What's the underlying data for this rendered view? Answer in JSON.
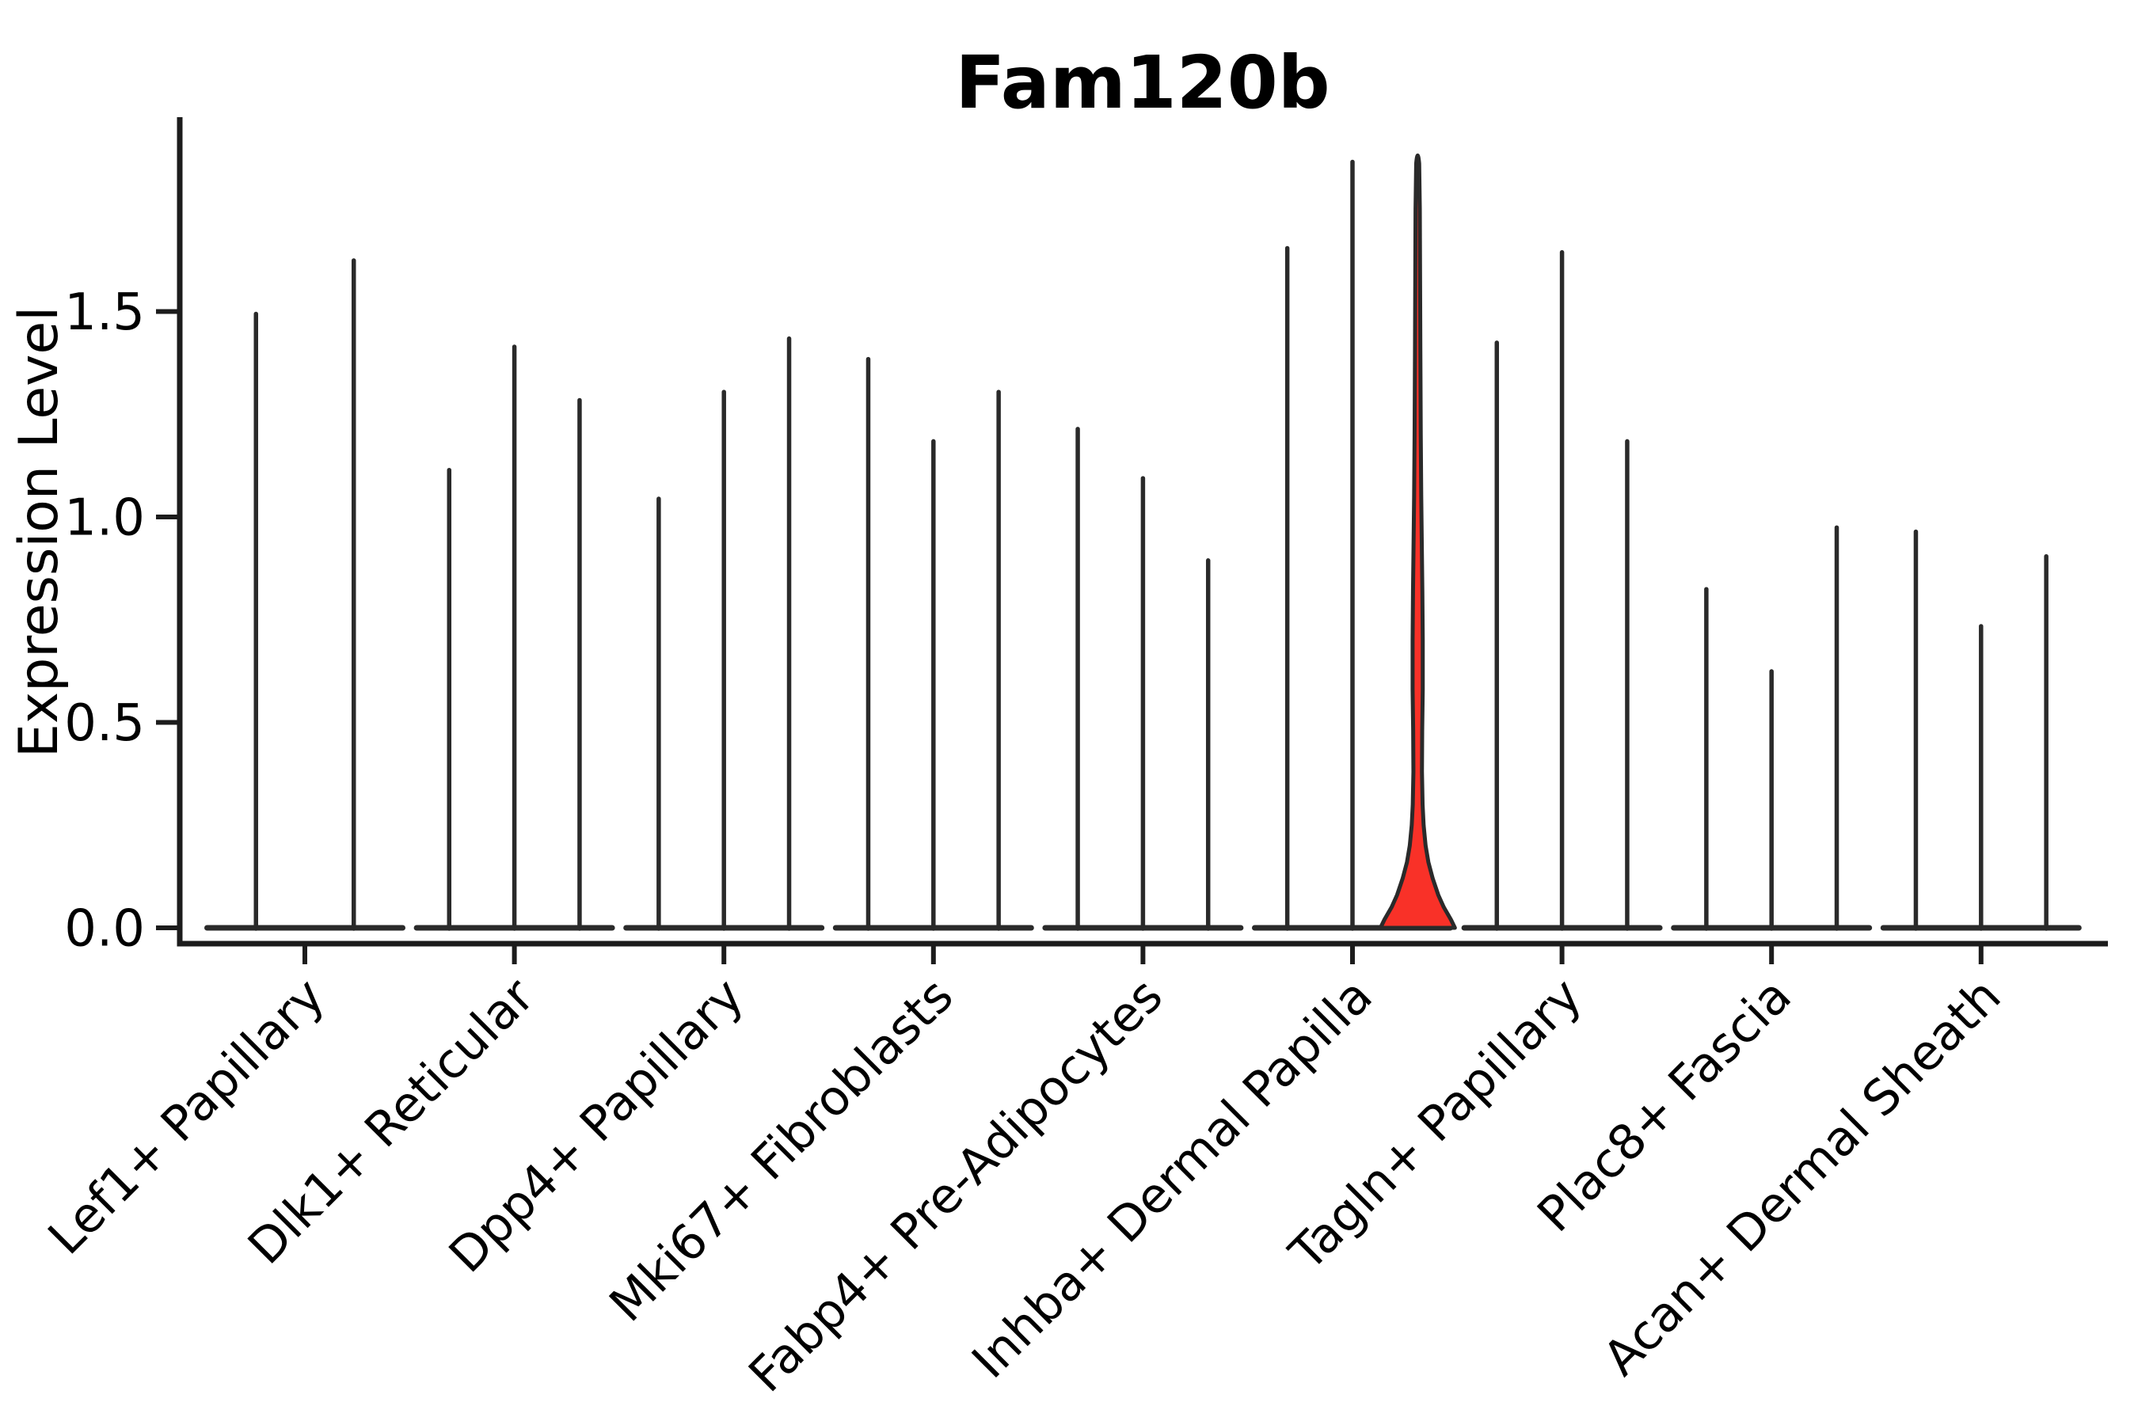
{
  "title": "Fam120b",
  "chart_data": {
    "type": "violin",
    "title": "Fam120b",
    "ylabel": "Expression Level",
    "xlabel": "",
    "ylim": [
      0,
      1.97
    ],
    "yticks": [
      {
        "value": 0.0,
        "label": "0.0"
      },
      {
        "value": 0.5,
        "label": "0.5"
      },
      {
        "value": 1.0,
        "label": "1.0"
      },
      {
        "value": 1.5,
        "label": "1.5"
      }
    ],
    "grid": false,
    "legend_position": "none",
    "categories": [
      "Lef1+ Papillary",
      "Dlk1+ Reticular",
      "Dpp4+ Papillary",
      "Mki67+ Fibroblasts",
      "Fabp4+ Pre-Adipocytes",
      "Inhba+ Dermal Papilla",
      "Tagln+ Papillary",
      "Plac8+ Fascia",
      "Acan+ Dermal Sheath"
    ],
    "groups": [
      {
        "label": "Lef1+ Papillary",
        "violin_peaks": [
          1.5,
          1.63
        ],
        "highlight_index": -1
      },
      {
        "label": "Dlk1+ Reticular",
        "violin_peaks": [
          1.12,
          1.42,
          1.29
        ],
        "highlight_index": -1
      },
      {
        "label": "Dpp4+ Papillary",
        "violin_peaks": [
          1.05,
          1.31,
          1.44
        ],
        "highlight_index": -1
      },
      {
        "label": "Mki67+ Fibroblasts",
        "violin_peaks": [
          1.39,
          1.19,
          1.31
        ],
        "highlight_index": -1
      },
      {
        "label": "Fabp4+ Pre-Adipocytes",
        "violin_peaks": [
          1.22,
          1.1,
          0.9
        ],
        "highlight_index": -1
      },
      {
        "label": "Inhba+ Dermal Papilla",
        "violin_peaks": [
          1.66,
          1.87,
          1.89
        ],
        "highlight_index": 2
      },
      {
        "label": "Tagln+ Papillary",
        "violin_peaks": [
          1.43,
          1.65,
          1.19
        ],
        "highlight_index": -1
      },
      {
        "label": "Plac8+ Fascia",
        "violin_peaks": [
          0.83,
          0.63,
          0.98
        ],
        "highlight_index": -1
      },
      {
        "label": "Acan+ Dermal Sheath",
        "violin_peaks": [
          0.97,
          0.74,
          0.91
        ],
        "highlight_index": -1
      }
    ],
    "highlight": {
      "category": "Inhba+ Dermal Papilla",
      "violin_index": 2,
      "peak": 1.89,
      "fill_color": "#f93128",
      "shape": "narrow spike with red fill and wide flared base near zero expression"
    },
    "colors": {
      "violin_line": "#2a2a2a",
      "axis": "#1c1c1c",
      "text": "#000000",
      "highlight_fill": "#f93128",
      "background": "#ffffff"
    }
  }
}
